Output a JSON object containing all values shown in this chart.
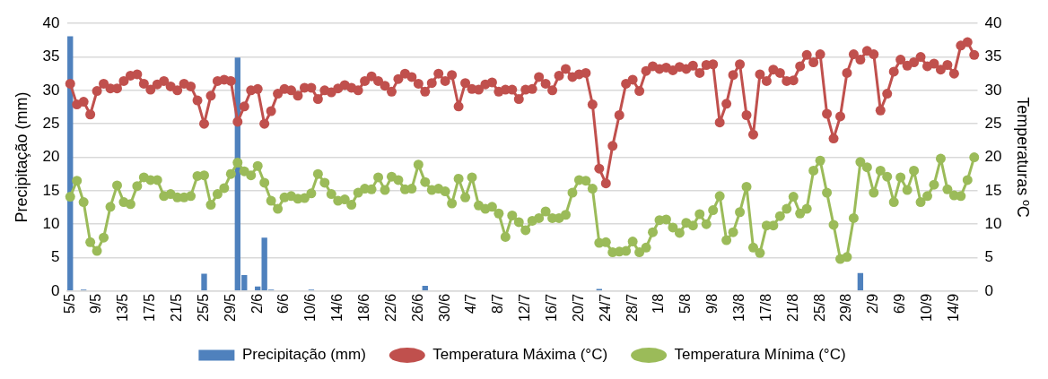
{
  "chart_data": {
    "type": "bar",
    "ylabel": "Precipitação (mm)",
    "y2label": "Temperaturas ºC",
    "categories": [
      "5/5",
      null,
      null,
      null,
      "9/5",
      null,
      null,
      null,
      "13/5",
      null,
      null,
      null,
      "17/5",
      null,
      null,
      null,
      "21/5",
      null,
      null,
      null,
      "25/5",
      null,
      null,
      null,
      "29/5",
      null,
      null,
      null,
      "2/6",
      null,
      null,
      null,
      "6/6",
      null,
      null,
      null,
      "10/6",
      null,
      null,
      null,
      "14/6",
      null,
      null,
      null,
      "18/6",
      null,
      null,
      null,
      "22/6",
      null,
      null,
      null,
      "26/6",
      null,
      null,
      null,
      "30/6",
      null,
      null,
      null,
      "4/7",
      null,
      null,
      null,
      "8/7",
      null,
      null,
      null,
      "12/7",
      null,
      null,
      null,
      "16/7",
      null,
      null,
      null,
      "20/7",
      null,
      null,
      null,
      "24/7",
      null,
      null,
      null,
      "28/7",
      null,
      null,
      null,
      "1/8",
      null,
      null,
      null,
      "5/8",
      null,
      null,
      null,
      "9/8",
      null,
      null,
      null,
      "13/8",
      null,
      null,
      null,
      "17/8",
      null,
      null,
      null,
      "21/8",
      null,
      null,
      null,
      "25/8",
      null,
      null,
      null,
      "29/8",
      null,
      null,
      null,
      "2/9",
      null,
      null,
      null,
      "6/9",
      null,
      null,
      null,
      "10/9",
      null,
      null,
      null,
      "14/9",
      null,
      null,
      null
    ],
    "series": [
      {
        "name": "Precipitação (mm)",
        "color": "#4f81bd",
        "values": [
          38.1,
          0,
          0.2,
          0,
          0,
          0,
          0,
          0,
          0,
          0,
          0,
          0,
          0,
          0,
          0,
          0,
          0,
          0,
          0,
          0,
          2.6,
          0,
          0,
          0,
          0,
          34.9,
          2.4,
          0,
          0.7,
          8.0,
          0.2,
          0,
          0,
          0,
          0,
          0,
          0.2,
          0,
          0,
          0,
          0,
          0,
          0,
          0,
          0,
          0,
          0,
          0,
          0,
          0,
          0,
          0,
          0,
          0.8,
          0,
          0,
          0,
          0,
          0,
          0,
          0,
          0,
          0,
          0,
          0,
          0,
          0,
          0,
          0,
          0,
          0,
          0,
          0,
          0,
          0,
          0,
          0,
          0,
          0,
          0.3,
          0,
          0,
          0,
          0,
          0,
          0,
          0,
          0,
          0,
          0,
          0,
          0,
          0,
          0,
          0,
          0,
          0,
          0,
          0,
          0,
          0,
          0,
          0,
          0,
          0,
          0,
          0,
          0,
          0,
          0,
          0,
          0,
          0,
          0,
          0,
          0,
          0,
          0,
          2.7,
          0,
          0,
          0,
          0,
          0,
          0,
          0,
          0,
          0,
          0,
          0,
          0,
          0,
          0,
          0,
          0,
          0
        ]
      },
      {
        "name": "Temperatura Máxima (°C)",
        "type": "line",
        "axis": "y2",
        "color": "#c0504d",
        "values": [
          31.0,
          27.9,
          28.3,
          26.4,
          29.9,
          31.0,
          30.3,
          30.3,
          31.4,
          32.2,
          32.4,
          31.0,
          30.1,
          30.9,
          31.4,
          30.6,
          30.0,
          31.0,
          30.6,
          28.5,
          25.0,
          29.2,
          31.4,
          31.6,
          31.4,
          25.3,
          27.6,
          30.0,
          30.2,
          25.0,
          26.9,
          29.5,
          30.2,
          30.0,
          29.2,
          30.4,
          30.4,
          28.7,
          30.0,
          29.7,
          30.3,
          30.8,
          30.4,
          30.0,
          31.4,
          32.1,
          31.4,
          30.7,
          29.8,
          31.7,
          32.5,
          32.0,
          31.0,
          29.8,
          31.1,
          32.5,
          31.4,
          32.3,
          27.6,
          31.1,
          30.2,
          30.1,
          30.9,
          31.2,
          29.8,
          30.1,
          30.1,
          28.7,
          30.1,
          30.2,
          32.0,
          31.0,
          30.0,
          32.2,
          33.2,
          32.0,
          32.4,
          32.6,
          27.9,
          18.3,
          16.1,
          21.7,
          26.3,
          31.0,
          31.6,
          29.9,
          32.9,
          33.6,
          33.2,
          33.4,
          33.0,
          33.5,
          33.2,
          33.7,
          32.6,
          33.8,
          33.9,
          25.2,
          28.0,
          32.3,
          33.9,
          26.3,
          23.4,
          32.4,
          31.4,
          33.1,
          32.6,
          31.4,
          31.5,
          33.6,
          35.3,
          34.2,
          35.4,
          26.5,
          22.8,
          26.1,
          32.6,
          35.4,
          34.6,
          35.9,
          35.4,
          27.0,
          29.5,
          32.8,
          34.6,
          33.7,
          34.2,
          35.0,
          33.6,
          34.0,
          33.1,
          33.8,
          32.5,
          36.7,
          37.2,
          35.3
        ]
      },
      {
        "name": "Temperatura Mínima (°C)",
        "type": "line",
        "axis": "y2",
        "color": "#9bbb59",
        "values": [
          14.1,
          16.5,
          13.3,
          7.3,
          6.0,
          8.0,
          12.6,
          15.8,
          13.3,
          13.0,
          15.7,
          17.0,
          16.6,
          16.6,
          14.2,
          14.5,
          14.0,
          14.0,
          14.2,
          17.2,
          17.3,
          12.9,
          14.5,
          15.4,
          17.5,
          19.2,
          17.9,
          17.3,
          18.7,
          16.2,
          13.5,
          12.3,
          14.0,
          14.2,
          13.8,
          13.9,
          14.6,
          17.5,
          16.2,
          14.5,
          13.5,
          13.7,
          12.9,
          14.7,
          15.3,
          15.2,
          17.0,
          15.1,
          17.1,
          16.6,
          15.2,
          15.3,
          18.9,
          16.3,
          15.1,
          15.3,
          14.9,
          13.1,
          16.8,
          14.0,
          17.0,
          12.8,
          12.3,
          12.6,
          11.6,
          8.1,
          11.3,
          10.3,
          9.1,
          10.5,
          10.9,
          11.9,
          10.9,
          10.9,
          11.4,
          14.7,
          16.6,
          16.5,
          15.3,
          7.2,
          7.3,
          5.8,
          5.9,
          6.0,
          7.4,
          5.8,
          6.5,
          8.8,
          10.6,
          10.7,
          9.5,
          8.7,
          10.2,
          9.8,
          11.5,
          10.0,
          12.1,
          14.2,
          7.6,
          8.8,
          11.8,
          15.6,
          6.5,
          5.7,
          9.8,
          9.8,
          11.2,
          12.3,
          14.1,
          11.6,
          12.3,
          18.0,
          19.5,
          14.7,
          9.9,
          4.8,
          5.1,
          10.9,
          19.3,
          18.5,
          14.7,
          18.0,
          17.1,
          13.3,
          17.0,
          15.1,
          18.0,
          13.3,
          14.2,
          15.9,
          19.8,
          15.2,
          14.3,
          14.2,
          16.6,
          20.0
        ]
      }
    ],
    "ylim": [
      0,
      40
    ],
    "yticks": [
      0,
      5,
      10,
      15,
      20,
      25,
      30,
      35,
      40
    ],
    "y2lim": [
      0,
      40
    ],
    "y2ticks": [
      0,
      5,
      10,
      15,
      20,
      25,
      30,
      35,
      40
    ],
    "grid": "y",
    "legend": "bottom",
    "marker": "circle",
    "line_style": "solid"
  }
}
